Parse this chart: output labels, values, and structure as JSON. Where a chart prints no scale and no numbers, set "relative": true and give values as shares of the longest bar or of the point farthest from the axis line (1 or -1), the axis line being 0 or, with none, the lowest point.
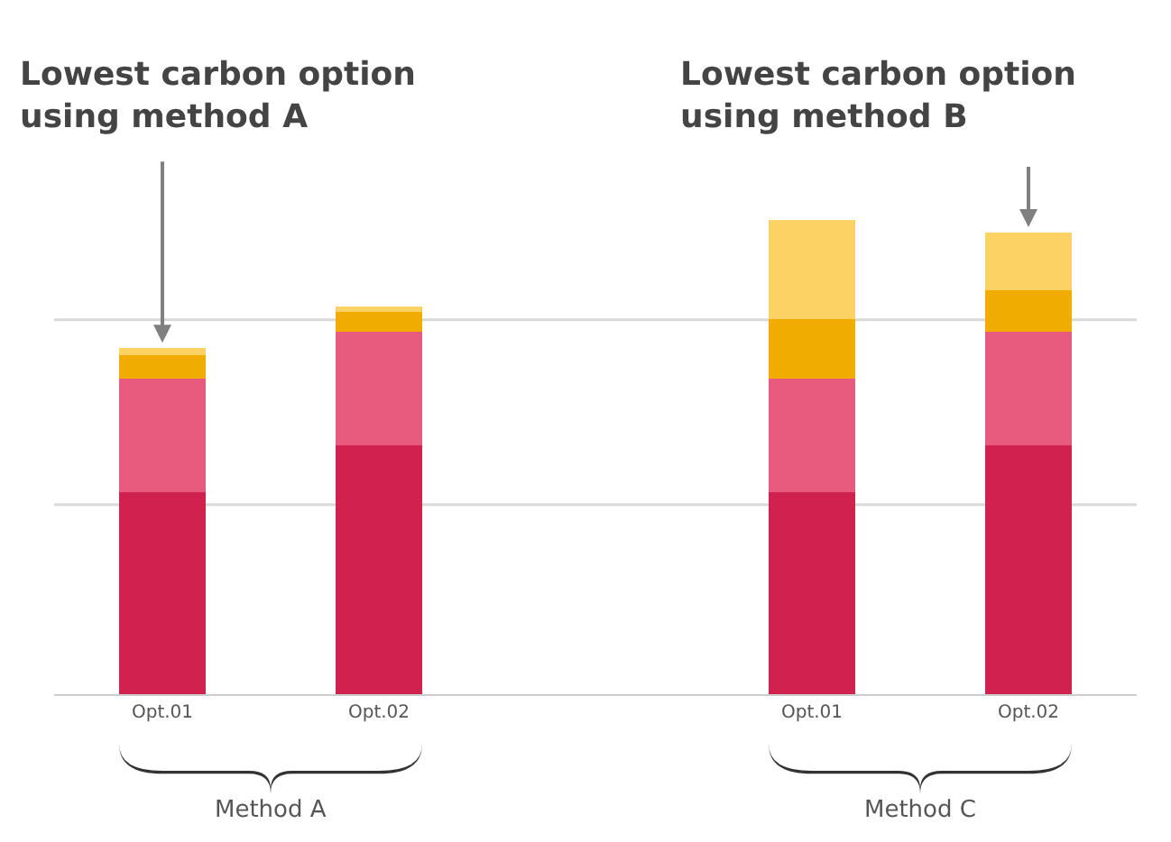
{
  "chart_data": {
    "type": "bar",
    "stacked": true,
    "relative": true,
    "categories": [
      "Opt.01",
      "Opt.02",
      null,
      "Opt.01",
      "Opt.02"
    ],
    "series": [
      {
        "color": "#d0214f",
        "values": [
          0.426,
          0.525,
          null,
          0.426,
          0.525
        ]
      },
      {
        "color": "#e85a7e",
        "values": [
          0.24,
          0.24,
          null,
          0.24,
          0.24
        ]
      },
      {
        "color": "#f0ad00",
        "values": [
          0.049,
          0.042,
          null,
          0.125,
          0.087
        ]
      },
      {
        "color": "#fcd264",
        "values": [
          0.015,
          0.011,
          null,
          0.209,
          0.122
        ]
      }
    ],
    "ref_lines": [
      {
        "axis": "y",
        "value": 0.4,
        "color": "#d9d9d9"
      },
      {
        "axis": "y",
        "value": 0.79,
        "color": "#d9d9d9"
      }
    ],
    "annotations": [
      "Lowest carbon option\nusing method A",
      "Lowest carbon option\nusing method B",
      "Method A",
      "Method C"
    ]
  }
}
